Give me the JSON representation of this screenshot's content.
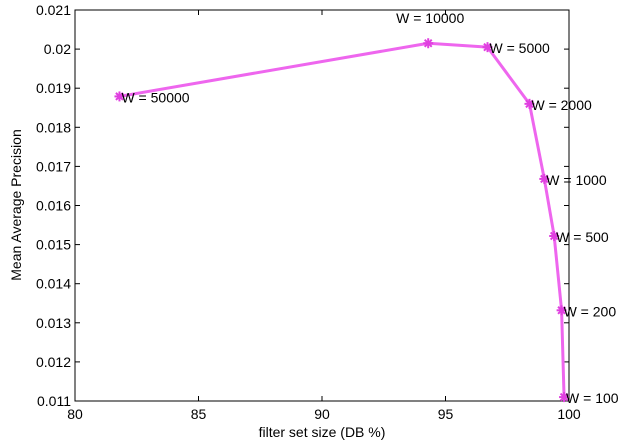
{
  "chart_data": {
    "type": "line",
    "title": "",
    "xlabel": "filter set size (DB %)",
    "ylabel": "Mean Average Precision",
    "xlim": [
      80,
      100
    ],
    "ylim": [
      0.011,
      0.021
    ],
    "x_ticks": [
      "80",
      "85",
      "90",
      "95",
      "100"
    ],
    "y_ticks": [
      "0.011",
      "0.012",
      "0.013",
      "0.014",
      "0.015",
      "0.016",
      "0.017",
      "0.018",
      "0.019",
      "0.02",
      "0.021"
    ],
    "grid": false,
    "legend": "none",
    "colors": {
      "series": "#ee66ee",
      "marker": "#e040e0",
      "axis": "#000000"
    },
    "series": [
      {
        "points": [
          {
            "x": 81.8,
            "y": 0.01879,
            "label": "W = 50000"
          },
          {
            "x": 94.3,
            "y": 0.02015,
            "label": "W = 10000"
          },
          {
            "x": 96.7,
            "y": 0.02005,
            "label": "W = 5000"
          },
          {
            "x": 98.4,
            "y": 0.0186,
            "label": "W = 2000"
          },
          {
            "x": 99.0,
            "y": 0.01668,
            "label": "W = 1000"
          },
          {
            "x": 99.4,
            "y": 0.01522,
            "label": "W = 500"
          },
          {
            "x": 99.7,
            "y": 0.01332,
            "label": "W = 200"
          },
          {
            "x": 99.8,
            "y": 0.0111,
            "label": "W = 100"
          }
        ]
      }
    ]
  }
}
